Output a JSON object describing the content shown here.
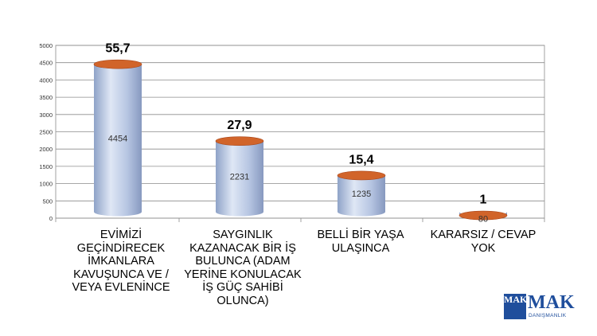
{
  "chart_data": {
    "type": "bar",
    "categories": [
      "EVİMİZİ GEÇİNDİRECEK İMKANLARA KAVUŞUNCA VE / VEYA  EVLENİNCE",
      "SAYGINLIK KAZANACAK BİR İŞ BULUNCA (ADAM YERİNE KONULACAK İŞ GÜÇ SAHİBİ OLUNCA)",
      "BELLİ BİR YAŞA ULAŞINCA",
      "KARARSIZ / CEVAP YOK"
    ],
    "values": [
      4454,
      2231,
      1235,
      80
    ],
    "value_labels": [
      "4454",
      "2231",
      "1235",
      "80"
    ],
    "percent_labels": [
      "55,7",
      "27,9",
      "15,4",
      "1"
    ],
    "y_ticks": [
      "0",
      "500",
      "1000",
      "1500",
      "2000",
      "2500",
      "3000",
      "3500",
      "4000",
      "4500",
      "5000"
    ],
    "ylim": [
      0,
      5000
    ],
    "grid": true,
    "colors": {
      "cylinder_body": "#b9c8e4",
      "cylinder_top": "#d1642a",
      "grid": "#8c8c8c"
    }
  },
  "logo": {
    "box_text": "MAK",
    "name": "MAK",
    "subtitle": "DANIŞMANLIK"
  }
}
